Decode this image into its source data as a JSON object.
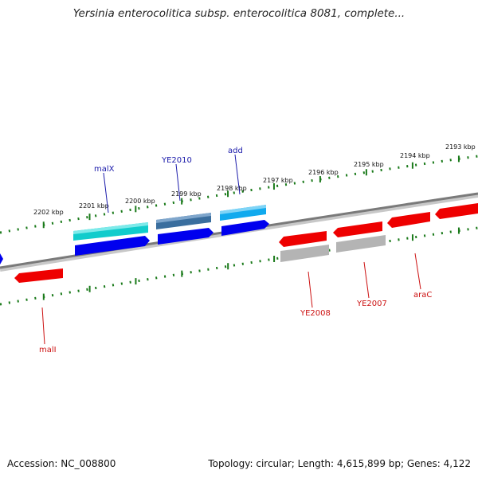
{
  "title": "Yersinia enterocolitica subsp. enterocolitica 8081, complete...",
  "footer": {
    "accession": "Accession: NC_008800",
    "stats": "Topology: circular; Length: 4,615,899 bp; Genes: 4,122"
  },
  "ticks": [
    "2202 kbp",
    "2201 kbp",
    "2200 kbp",
    "2199 kbp",
    "2198 kbp",
    "2197 kbp",
    "2196 kbp",
    "2195 kbp",
    "2194 kbp",
    "2193 kbp"
  ],
  "gene_labels": [
    "malX",
    "YE2010",
    "add",
    "malI",
    "YE2008",
    "YE2007",
    "araC"
  ],
  "colors": {
    "backbone": "#7a7a7a",
    "tick_green": "#1a7a1a",
    "label_blue": "#1a1aaa",
    "label_red": "#cc1111",
    "gene_red": "#ee0000",
    "gene_blue": "#0000ee",
    "gene_cyan": "#11cccc",
    "gene_lightblue": "#11aaee",
    "gene_steel": "#3a6e9e",
    "gene_grey": "#b4b4b4"
  }
}
